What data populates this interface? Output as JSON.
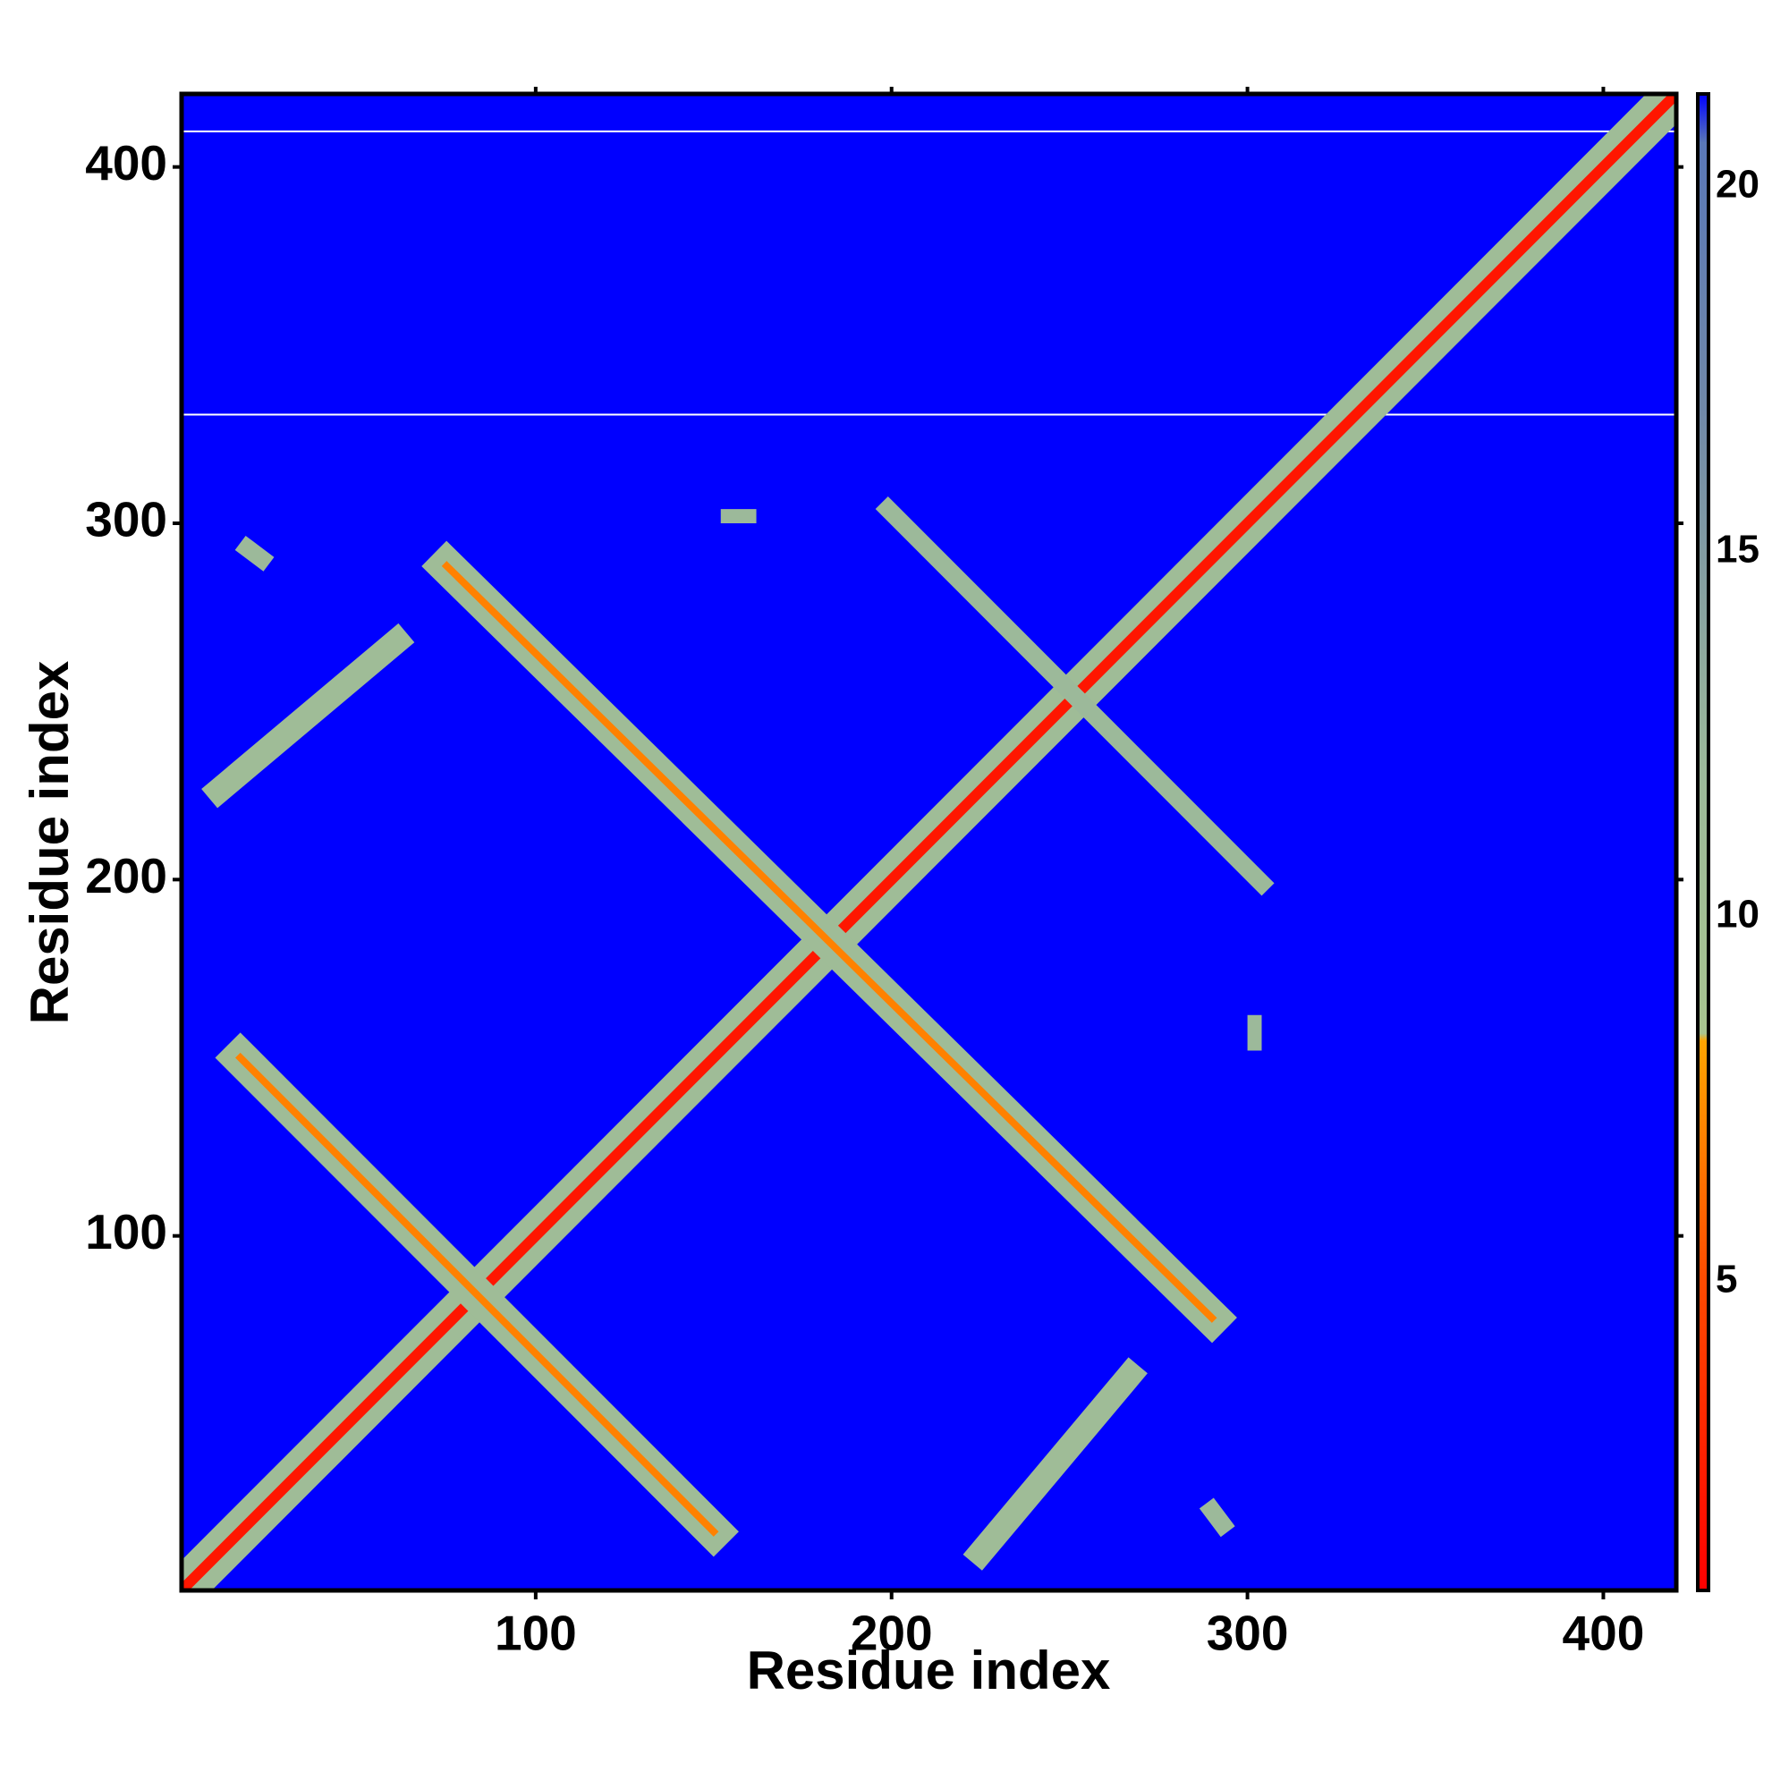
{
  "chart_data": {
    "type": "heatmap",
    "xlabel": "Residue index",
    "ylabel": "Residue index",
    "xlim": [
      0.5,
      420.5
    ],
    "ylim": [
      0.5,
      420.5
    ],
    "xticks": [
      100,
      200,
      300,
      400
    ],
    "yticks": [
      100,
      200,
      300,
      400
    ],
    "clim": [
      0.77,
      21.27
    ],
    "cticks": [
      5,
      10,
      15,
      20
    ],
    "colorscale": [
      [
        0.77,
        "#ff0000"
      ],
      [
        5,
        "#ff4a00"
      ],
      [
        8.3,
        "#ffa500"
      ],
      [
        8.4,
        "#a8c490"
      ],
      [
        12,
        "#9cb99a"
      ],
      [
        17,
        "#7088a8"
      ],
      [
        20.6,
        "#5a78b8"
      ],
      [
        21.27,
        "#0000ff"
      ]
    ],
    "background": 21.27,
    "null_rows": [
      410,
      330.5
    ],
    "features": [
      {
        "x": [
          1,
          420
        ],
        "y": [
          1,
          420
        ],
        "width": 12,
        "value": 11
      },
      {
        "x": [
          1,
          420
        ],
        "y": [
          1,
          420
        ],
        "width": 3,
        "value": 2
      },
      {
        "x": [
          17,
          150
        ],
        "y": [
          150,
          17
        ],
        "width": 10,
        "value": 11
      },
      {
        "x": [
          17,
          150
        ],
        "y": [
          150,
          17
        ],
        "width": 2,
        "value": 7
      },
      {
        "x": [
          75,
          290
        ],
        "y": [
          288,
          77
        ],
        "width": 10,
        "value": 11
      },
      {
        "x": [
          75,
          290
        ],
        "y": [
          288,
          77
        ],
        "width": 2,
        "value": 7
      },
      {
        "x": [
          199,
          304
        ],
        "y": [
          304,
          199
        ],
        "width": 5,
        "value": 12
      },
      {
        "x": [
          11,
          61
        ],
        "y": [
          225,
          267
        ],
        "width": 7,
        "value": 11
      },
      {
        "x": [
          225,
          267
        ],
        "y": [
          11,
          61
        ],
        "width": 7,
        "value": 11
      },
      {
        "x": [
          154,
          160
        ],
        "y": [
          302,
          302
        ],
        "width": 4,
        "value": 12
      },
      {
        "x": [
          302,
          302
        ],
        "y": [
          154,
          160
        ],
        "width": 4,
        "value": 12
      },
      {
        "x": [
          19,
          23
        ],
        "y": [
          293,
          290
        ],
        "width": 5,
        "value": 12
      },
      {
        "x": [
          293,
          290
        ],
        "y": [
          19,
          23
        ],
        "width": 5,
        "value": 12
      }
    ]
  }
}
